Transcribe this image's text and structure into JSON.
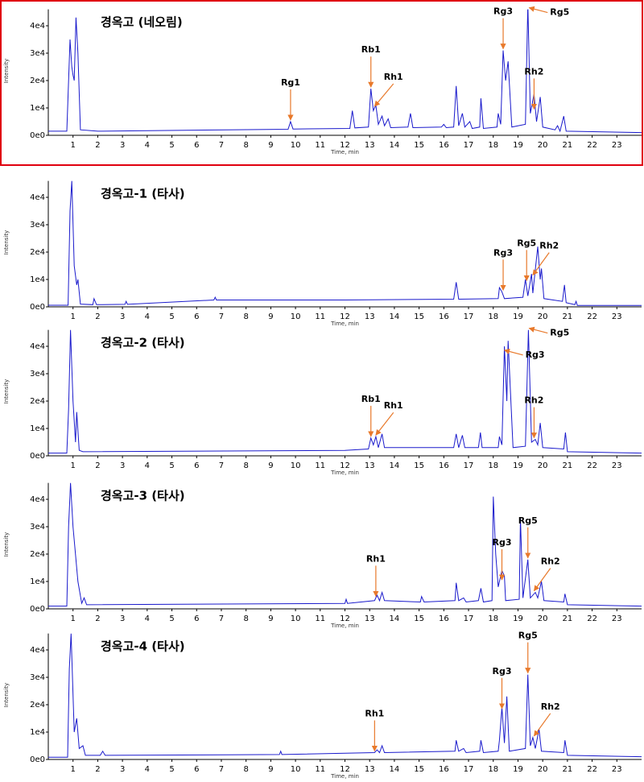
{
  "chart_data": [
    {
      "type": "line",
      "title": "경옥고 (네오림)",
      "xlabel": "Time, min",
      "ylabel": "Intensity",
      "color": "#1a1acc",
      "xlim": [
        0,
        24
      ],
      "ylim": [
        0,
        46000
      ],
      "xticks": [
        1,
        2,
        3,
        4,
        5,
        6,
        7,
        8,
        9,
        10,
        11,
        12,
        13,
        14,
        15,
        16,
        17,
        18,
        19,
        20,
        21,
        22,
        23
      ],
      "yticks": [
        {
          "value": 0,
          "label": "0e0"
        },
        {
          "value": 10000,
          "label": "1e4"
        },
        {
          "value": 20000,
          "label": "2e4"
        },
        {
          "value": 30000,
          "label": "3e4"
        },
        {
          "value": 40000,
          "label": "4e4"
        }
      ],
      "x": [
        0,
        0.75,
        0.88,
        0.95,
        1.0,
        1.05,
        1.12,
        1.2,
        1.3,
        2.0,
        9.7,
        9.8,
        9.9,
        12.2,
        12.3,
        12.4,
        12.95,
        13.05,
        13.15,
        13.25,
        13.35,
        13.5,
        13.6,
        13.75,
        13.85,
        14.55,
        14.65,
        14.75,
        15.9,
        16.0,
        16.1,
        16.4,
        16.5,
        16.6,
        16.75,
        16.85,
        17.05,
        17.15,
        17.45,
        17.5,
        17.6,
        18.15,
        18.2,
        18.3,
        18.4,
        18.5,
        18.6,
        18.75,
        19.3,
        19.4,
        19.5,
        19.65,
        19.75,
        19.9,
        20.0,
        20.5,
        20.6,
        20.7,
        20.85,
        20.95,
        24
      ],
      "values": [
        1500,
        1500,
        35000,
        25000,
        22000,
        20000,
        43000,
        30000,
        2000,
        1500,
        2200,
        5000,
        2300,
        2500,
        9000,
        2700,
        3000,
        17000,
        9000,
        11000,
        4000,
        7000,
        3500,
        6000,
        2800,
        3000,
        8000,
        2800,
        3000,
        4000,
        2800,
        3000,
        18000,
        3500,
        8000,
        3000,
        5000,
        2500,
        3000,
        13500,
        2500,
        3000,
        8000,
        4000,
        31000,
        20000,
        27000,
        3000,
        4000,
        48000,
        8000,
        15000,
        5000,
        14000,
        3000,
        2000,
        3500,
        1500,
        7000,
        1500,
        1000
      ],
      "annotations": [
        {
          "text": "Rg1",
          "x": 9.8,
          "y": 5000
        },
        {
          "text": "Rb1",
          "x": 13.05,
          "y": 17000
        },
        {
          "text": "Rh1",
          "x": 13.2,
          "y": 10000
        },
        {
          "text": "Rg3",
          "x": 18.4,
          "y": 31000
        },
        {
          "text": "Rg5",
          "x": 19.45,
          "y": 46000
        },
        {
          "text": "Rh2",
          "x": 19.65,
          "y": 9000
        }
      ]
    },
    {
      "type": "line",
      "title": "경옥고-1 (타사)",
      "xlabel": "Time, min",
      "ylabel": "Intensity",
      "color": "#1a1acc",
      "xlim": [
        0,
        24
      ],
      "ylim": [
        0,
        46000
      ],
      "xticks": [
        1,
        2,
        3,
        4,
        5,
        6,
        7,
        8,
        9,
        10,
        11,
        12,
        13,
        14,
        15,
        16,
        17,
        18,
        19,
        20,
        21,
        22,
        23
      ],
      "yticks": [
        {
          "value": 0,
          "label": "0e0"
        },
        {
          "value": 10000,
          "label": "1e4"
        },
        {
          "value": 20000,
          "label": "2e4"
        },
        {
          "value": 30000,
          "label": "3e4"
        },
        {
          "value": 40000,
          "label": "4e4"
        }
      ],
      "x": [
        0,
        0.8,
        0.88,
        0.95,
        1.05,
        1.15,
        1.2,
        1.3,
        1.8,
        1.85,
        1.95,
        3.1,
        3.15,
        3.2,
        6.7,
        6.75,
        6.8,
        12,
        16.4,
        16.5,
        16.6,
        18.2,
        18.25,
        18.35,
        18.45,
        19.2,
        19.3,
        19.4,
        19.55,
        19.6,
        19.8,
        19.9,
        19.95,
        20.05,
        20.8,
        20.88,
        20.95,
        21.3,
        21.35,
        21.4,
        24
      ],
      "values": [
        600,
        600,
        35000,
        46000,
        15000,
        8000,
        10000,
        1000,
        800,
        3000,
        800,
        900,
        2000,
        900,
        2500,
        3500,
        2500,
        2500,
        2800,
        9000,
        2800,
        3000,
        7000,
        5500,
        3000,
        3500,
        10000,
        4000,
        12000,
        5000,
        22000,
        10000,
        14000,
        3000,
        2000,
        8000,
        1500,
        800,
        2000,
        500,
        500
      ],
      "annotations": [
        {
          "text": "Rg3",
          "x": 18.4,
          "y": 5500
        },
        {
          "text": "Rg5",
          "x": 19.35,
          "y": 9000
        },
        {
          "text": "Rh2",
          "x": 19.6,
          "y": 11000
        }
      ]
    },
    {
      "type": "line",
      "title": "경옥고-2 (타사)",
      "xlabel": "Time, min",
      "ylabel": "Intensity",
      "color": "#1a1acc",
      "xlim": [
        0,
        24
      ],
      "ylim": [
        0,
        46000
      ],
      "xticks": [
        1,
        2,
        3,
        4,
        5,
        6,
        7,
        8,
        9,
        10,
        11,
        12,
        13,
        14,
        15,
        16,
        17,
        18,
        19,
        20,
        21,
        22,
        23
      ],
      "yticks": [
        {
          "value": 0,
          "label": "0e0"
        },
        {
          "value": 10000,
          "label": "1e4"
        },
        {
          "value": 20000,
          "label": "2e4"
        },
        {
          "value": 30000,
          "label": "3e4"
        },
        {
          "value": 40000,
          "label": "4e4"
        }
      ],
      "x": [
        0,
        0.75,
        0.82,
        0.9,
        1.0,
        1.1,
        1.15,
        1.25,
        1.4,
        12,
        12.95,
        13.05,
        13.15,
        13.25,
        13.35,
        13.5,
        13.6,
        16.4,
        16.5,
        16.6,
        16.75,
        16.85,
        17.4,
        17.48,
        17.55,
        18.2,
        18.25,
        18.35,
        18.45,
        18.55,
        18.6,
        18.8,
        19.3,
        19.42,
        19.55,
        19.7,
        19.8,
        19.9,
        20.0,
        20.85,
        20.92,
        21.0,
        24
      ],
      "values": [
        1000,
        1000,
        17000,
        46000,
        20000,
        5000,
        16000,
        2000,
        1500,
        2000,
        2500,
        6500,
        4000,
        7000,
        3000,
        8000,
        3000,
        3000,
        8000,
        3000,
        7500,
        3000,
        3000,
        8500,
        3000,
        3000,
        7000,
        4000,
        40000,
        20000,
        42000,
        3000,
        3500,
        46000,
        5000,
        6000,
        4000,
        12000,
        3000,
        2500,
        8500,
        1500,
        1000
      ],
      "annotations": [
        {
          "text": "Rb1",
          "x": 13.05,
          "y": 6500
        },
        {
          "text": "Rh1",
          "x": 13.25,
          "y": 7000
        },
        {
          "text": "Rg3",
          "x": 18.45,
          "y": 38000
        },
        {
          "text": "Rg5",
          "x": 19.45,
          "y": 46000
        },
        {
          "text": "Rh2",
          "x": 19.65,
          "y": 6000
        }
      ]
    },
    {
      "type": "line",
      "title": "경옥고-3 (타사)",
      "xlabel": "Time, min",
      "ylabel": "Intensity",
      "color": "#1a1acc",
      "xlim": [
        0,
        24
      ],
      "ylim": [
        0,
        46000
      ],
      "xticks": [
        1,
        2,
        3,
        4,
        5,
        6,
        7,
        8,
        9,
        10,
        11,
        12,
        13,
        14,
        15,
        16,
        17,
        18,
        19,
        20,
        21,
        22,
        23
      ],
      "yticks": [
        {
          "value": 0,
          "label": "0e0"
        },
        {
          "value": 10000,
          "label": "1e4"
        },
        {
          "value": 20000,
          "label": "2e4"
        },
        {
          "value": 30000,
          "label": "3e4"
        },
        {
          "value": 40000,
          "label": "4e4"
        }
      ],
      "x": [
        0,
        0.75,
        0.82,
        0.9,
        1.0,
        1.2,
        1.35,
        1.45,
        1.55,
        12.0,
        12.05,
        12.1,
        13.2,
        13.3,
        13.4,
        13.5,
        13.6,
        15.05,
        15.1,
        15.2,
        16.45,
        16.5,
        16.6,
        16.8,
        16.9,
        17.4,
        17.5,
        17.6,
        17.95,
        18.0,
        18.1,
        18.2,
        18.35,
        18.45,
        18.5,
        19.05,
        19.1,
        19.2,
        19.4,
        19.5,
        19.7,
        19.8,
        19.95,
        20.05,
        20.85,
        20.9,
        21.0,
        24
      ],
      "values": [
        1000,
        1000,
        30000,
        46000,
        30000,
        10000,
        2000,
        4000,
        1500,
        2000,
        3500,
        2000,
        3000,
        5000,
        3000,
        6000,
        3000,
        2500,
        4500,
        2500,
        3000,
        9500,
        3000,
        4000,
        2500,
        3000,
        7500,
        2500,
        3000,
        41000,
        20000,
        8000,
        14000,
        12000,
        3000,
        3500,
        33000,
        4000,
        18000,
        4000,
        6000,
        4000,
        10000,
        3000,
        2500,
        5500,
        1500,
        1000
      ],
      "annotations": [
        {
          "text": "Rh1",
          "x": 13.25,
          "y": 4000
        },
        {
          "text": "Rg3",
          "x": 18.35,
          "y": 10000
        },
        {
          "text": "Rg5",
          "x": 19.4,
          "y": 18000
        },
        {
          "text": "Rh2",
          "x": 19.65,
          "y": 6000
        }
      ]
    },
    {
      "type": "line",
      "title": "경옥고-4 (타사)",
      "xlabel": "Time, min",
      "ylabel": "Intensity",
      "color": "#1a1acc",
      "xlim": [
        0,
        24
      ],
      "ylim": [
        0,
        46000
      ],
      "xticks": [
        1,
        2,
        3,
        4,
        5,
        6,
        7,
        8,
        9,
        10,
        11,
        12,
        13,
        14,
        15,
        16,
        17,
        18,
        19,
        20,
        21,
        22,
        23
      ],
      "yticks": [
        {
          "value": 0,
          "label": "0e0"
        },
        {
          "value": 10000,
          "label": "1e4"
        },
        {
          "value": 20000,
          "label": "2e4"
        },
        {
          "value": 30000,
          "label": "3e4"
        },
        {
          "value": 40000,
          "label": "4e4"
        }
      ],
      "x": [
        0,
        0.78,
        0.85,
        0.92,
        1.05,
        1.15,
        1.25,
        1.4,
        1.5,
        2.1,
        2.2,
        2.3,
        9.35,
        9.4,
        9.45,
        13.2,
        13.3,
        13.4,
        13.5,
        13.6,
        16.45,
        16.5,
        16.6,
        16.8,
        16.9,
        17.45,
        17.5,
        17.6,
        18.2,
        18.25,
        18.35,
        18.45,
        18.55,
        18.65,
        19.3,
        19.4,
        19.5,
        19.6,
        19.7,
        19.85,
        19.95,
        20.85,
        20.9,
        21.0,
        24
      ],
      "values": [
        800,
        800,
        33000,
        46000,
        10000,
        15000,
        4000,
        5000,
        1500,
        1500,
        3000,
        1500,
        1800,
        3000,
        1800,
        2500,
        3500,
        2500,
        5000,
        2500,
        3000,
        7000,
        3000,
        4000,
        2500,
        3000,
        7000,
        2500,
        3000,
        7000,
        19000,
        6000,
        23000,
        3000,
        4000,
        31000,
        5000,
        8000,
        4000,
        11000,
        3000,
        2500,
        7000,
        1500,
        1000
      ],
      "annotations": [
        {
          "text": "Rh1",
          "x": 13.2,
          "y": 2500
        },
        {
          "text": "Rg3",
          "x": 18.35,
          "y": 18000
        },
        {
          "text": "Rg5",
          "x": 19.4,
          "y": 31000
        },
        {
          "text": "Rh2",
          "x": 19.65,
          "y": 8000
        }
      ]
    }
  ]
}
